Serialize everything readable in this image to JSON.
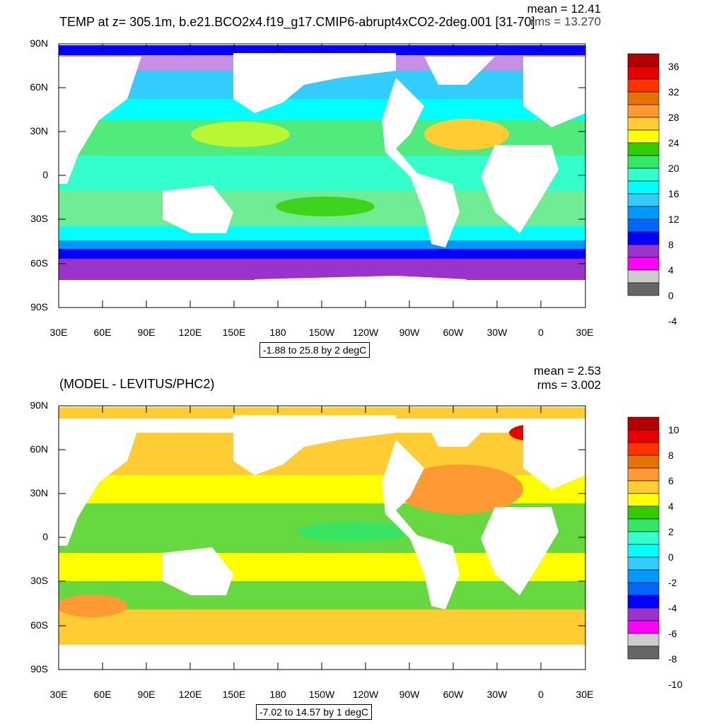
{
  "panel1": {
    "title": "TEMP at z= 305.1m, b.e21.BCO2x4.f19_g17.CMIP6-abrupt4xCO2-2deg.001 [31-70]",
    "mean": "mean = 12.41",
    "rms": "rms = 13.270",
    "range": "-1.88 to 25.8 by 2 degC",
    "colorbar_labels": [
      "36",
      "32",
      "28",
      "24",
      "20",
      "16",
      "12",
      "8",
      "4",
      "0",
      "-4"
    ],
    "colors": [
      "#b30000",
      "#e60000",
      "#ff3300",
      "#e67300",
      "#ff9933",
      "#ffcc33",
      "#ffff00",
      "#33cc00",
      "#33e666",
      "#33ffcc",
      "#00ffff",
      "#33ccff",
      "#0099ff",
      "#0066ff",
      "#0000ff",
      "#9933cc",
      "#ff00ff",
      "#cccccc",
      "#666666"
    ]
  },
  "panel2": {
    "title": "(MODEL - LEVITUS/PHC2)",
    "mean": "mean = 2.53",
    "rms": "rms = 3.002",
    "range": "-7.02 to 14.57 by 1 degC",
    "colorbar_labels": [
      "10",
      "8",
      "6",
      "4",
      "2",
      "0",
      "-2",
      "-4",
      "-6",
      "-8",
      "-10"
    ],
    "colors": [
      "#b30000",
      "#e60000",
      "#ff3300",
      "#e67300",
      "#ff9933",
      "#ffcc33",
      "#ffff00",
      "#33cc00",
      "#33e666",
      "#33ffcc",
      "#00ffff",
      "#33ccff",
      "#0099ff",
      "#0066ff",
      "#0000ff",
      "#9933cc",
      "#ff00ff",
      "#cccccc",
      "#666666"
    ]
  },
  "axes": {
    "lat_labels": [
      "90N",
      "60N",
      "30N",
      "0",
      "30S",
      "60S",
      "90S"
    ],
    "lon_labels": [
      "30E",
      "60E",
      "90E",
      "120E",
      "150E",
      "180",
      "150W",
      "120W",
      "90W",
      "60W",
      "30W",
      "0",
      "30E"
    ]
  }
}
